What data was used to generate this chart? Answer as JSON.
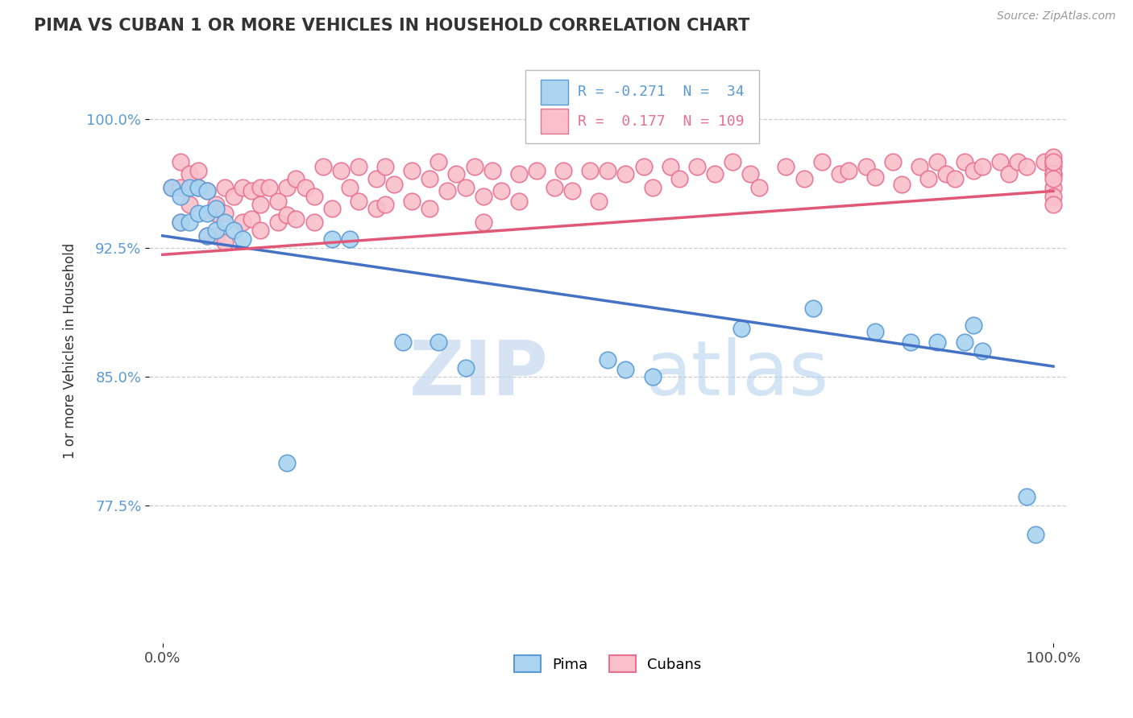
{
  "title": "PIMA VS CUBAN 1 OR MORE VEHICLES IN HOUSEHOLD CORRELATION CHART",
  "source_text": "Source: ZipAtlas.com",
  "ylabel": "1 or more Vehicles in Household",
  "watermark_zip": "ZIP",
  "watermark_atlas": "atlas",
  "xlim": [
    -0.015,
    1.015
  ],
  "ylim": [
    0.695,
    1.035
  ],
  "ytick_vals": [
    0.775,
    0.85,
    0.925,
    1.0
  ],
  "ytick_labels": [
    "77.5%",
    "85.0%",
    "92.5%",
    "100.0%"
  ],
  "xtick_vals": [
    0.0,
    1.0
  ],
  "xtick_labels": [
    "0.0%",
    "100.0%"
  ],
  "legend_blue_r": "-0.271",
  "legend_blue_n": "34",
  "legend_pink_r": "0.177",
  "legend_pink_n": "109",
  "blue_fill": "#aad4f0",
  "blue_edge": "#5b9bd5",
  "pink_fill": "#f9c0cb",
  "pink_edge": "#e87090",
  "blue_line": "#4472c4",
  "pink_line": "#e05878",
  "grid_color": "#cccccc",
  "blue_trend_x0": 0.0,
  "blue_trend_y0": 0.932,
  "blue_trend_x1": 1.0,
  "blue_trend_y1": 0.856,
  "pink_trend_x0": 0.0,
  "pink_trend_y0": 0.921,
  "pink_trend_x1": 1.0,
  "pink_trend_y1": 0.958,
  "pima_x": [
    0.01,
    0.02,
    0.02,
    0.03,
    0.03,
    0.04,
    0.04,
    0.05,
    0.05,
    0.05,
    0.06,
    0.06,
    0.07,
    0.08,
    0.09,
    0.14,
    0.19,
    0.21,
    0.27,
    0.31,
    0.34,
    0.5,
    0.52,
    0.55,
    0.65,
    0.73,
    0.8,
    0.84,
    0.87,
    0.9,
    0.91,
    0.92,
    0.97,
    0.98
  ],
  "pima_y": [
    0.96,
    0.955,
    0.94,
    0.96,
    0.94,
    0.96,
    0.945,
    0.958,
    0.945,
    0.932,
    0.948,
    0.935,
    0.94,
    0.935,
    0.93,
    0.8,
    0.93,
    0.93,
    0.87,
    0.87,
    0.855,
    0.86,
    0.854,
    0.85,
    0.878,
    0.89,
    0.876,
    0.87,
    0.87,
    0.87,
    0.88,
    0.865,
    0.78,
    0.758
  ],
  "cuban_x": [
    0.01,
    0.02,
    0.02,
    0.02,
    0.03,
    0.03,
    0.04,
    0.04,
    0.05,
    0.05,
    0.06,
    0.06,
    0.06,
    0.07,
    0.07,
    0.07,
    0.08,
    0.09,
    0.09,
    0.1,
    0.1,
    0.11,
    0.11,
    0.11,
    0.12,
    0.13,
    0.13,
    0.14,
    0.14,
    0.15,
    0.15,
    0.16,
    0.17,
    0.17,
    0.18,
    0.19,
    0.2,
    0.21,
    0.22,
    0.22,
    0.24,
    0.24,
    0.25,
    0.25,
    0.26,
    0.28,
    0.28,
    0.3,
    0.3,
    0.31,
    0.32,
    0.33,
    0.34,
    0.35,
    0.36,
    0.36,
    0.37,
    0.38,
    0.4,
    0.4,
    0.42,
    0.44,
    0.45,
    0.46,
    0.48,
    0.49,
    0.5,
    0.52,
    0.54,
    0.55,
    0.57,
    0.58,
    0.6,
    0.62,
    0.64,
    0.66,
    0.67,
    0.7,
    0.72,
    0.74,
    0.76,
    0.77,
    0.79,
    0.8,
    0.82,
    0.83,
    0.85,
    0.86,
    0.87,
    0.88,
    0.89,
    0.9,
    0.91,
    0.92,
    0.94,
    0.95,
    0.96,
    0.97,
    0.99,
    1.0,
    1.0,
    1.0,
    1.0,
    1.0,
    1.0,
    1.0,
    1.0,
    1.0,
    1.0
  ],
  "cuban_y": [
    0.96,
    0.94,
    0.96,
    0.975,
    0.95,
    0.968,
    0.96,
    0.97,
    0.958,
    0.932,
    0.945,
    0.932,
    0.95,
    0.945,
    0.928,
    0.96,
    0.955,
    0.96,
    0.94,
    0.958,
    0.942,
    0.96,
    0.95,
    0.935,
    0.96,
    0.952,
    0.94,
    0.96,
    0.944,
    0.965,
    0.942,
    0.96,
    0.955,
    0.94,
    0.972,
    0.948,
    0.97,
    0.96,
    0.972,
    0.952,
    0.965,
    0.948,
    0.972,
    0.95,
    0.962,
    0.97,
    0.952,
    0.965,
    0.948,
    0.975,
    0.958,
    0.968,
    0.96,
    0.972,
    0.955,
    0.94,
    0.97,
    0.958,
    0.968,
    0.952,
    0.97,
    0.96,
    0.97,
    0.958,
    0.97,
    0.952,
    0.97,
    0.968,
    0.972,
    0.96,
    0.972,
    0.965,
    0.972,
    0.968,
    0.975,
    0.968,
    0.96,
    0.972,
    0.965,
    0.975,
    0.968,
    0.97,
    0.972,
    0.966,
    0.975,
    0.962,
    0.972,
    0.965,
    0.975,
    0.968,
    0.965,
    0.975,
    0.97,
    0.972,
    0.975,
    0.968,
    0.975,
    0.972,
    0.975,
    0.96,
    0.955,
    0.95,
    0.968,
    0.975,
    0.972,
    0.968,
    0.965,
    0.978,
    0.975
  ]
}
